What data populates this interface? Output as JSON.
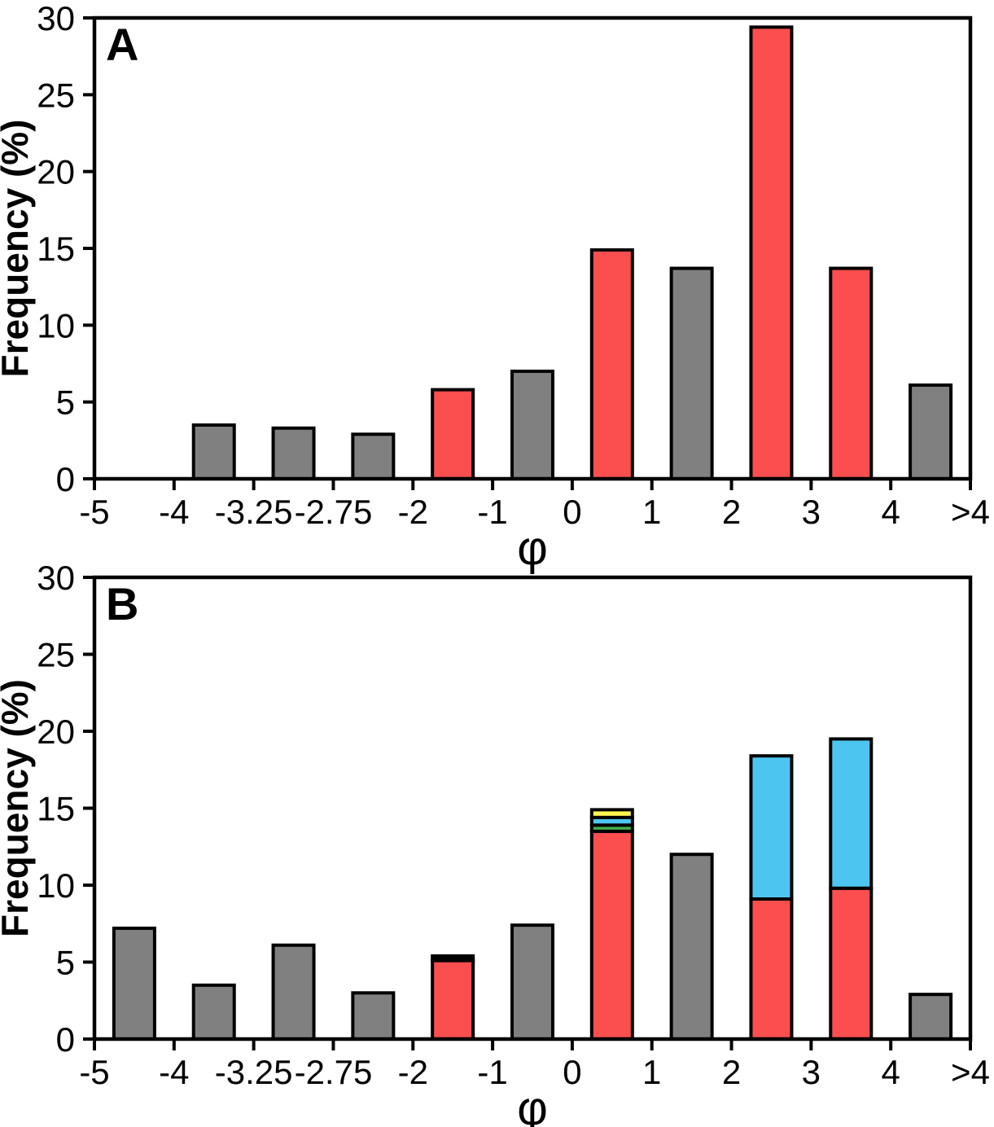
{
  "figure": {
    "background": "#FFFFFF",
    "description": "Two stacked-bar frequency histograms of grain size (phi scale), panels A and B",
    "colors": {
      "gray": "#808080",
      "red": "#FB4F4F",
      "cyan": "#4CC6F0",
      "green": "#44B04A",
      "yellow": "#FFF551",
      "black": "#000000",
      "outline": "#000000",
      "axis": "#000000"
    }
  },
  "chart_data": [
    {
      "type": "bar",
      "panel_label": "A",
      "title": "",
      "xlabel": "φ",
      "ylabel": "Frequency (%)",
      "ylim": [
        0,
        30
      ],
      "yticks": [
        0,
        5,
        10,
        15,
        20,
        25,
        30
      ],
      "xtick_labels": [
        "-5",
        "-4",
        "-3.25",
        "-2.75",
        "-2",
        "-1",
        "0",
        "1",
        "2",
        "3",
        "4",
        ">4"
      ],
      "grid": false,
      "legend": "none",
      "bins": [
        {
          "range": "-5 to -4",
          "segments": []
        },
        {
          "range": "-4 to -3.25",
          "segments": [
            {
              "color": "gray",
              "value": 3.5
            }
          ]
        },
        {
          "range": "-3.25 to -2.75",
          "segments": [
            {
              "color": "gray",
              "value": 3.3
            }
          ]
        },
        {
          "range": "-2.75 to -2",
          "segments": [
            {
              "color": "gray",
              "value": 2.9
            }
          ]
        },
        {
          "range": "-2 to -1",
          "segments": [
            {
              "color": "red",
              "value": 5.8
            }
          ]
        },
        {
          "range": "-1 to 0",
          "segments": [
            {
              "color": "gray",
              "value": 7.0
            }
          ]
        },
        {
          "range": "0 to 1",
          "segments": [
            {
              "color": "red",
              "value": 14.9
            }
          ]
        },
        {
          "range": "1 to 2",
          "segments": [
            {
              "color": "gray",
              "value": 13.7
            }
          ]
        },
        {
          "range": "2 to 3",
          "segments": [
            {
              "color": "red",
              "value": 29.4
            }
          ]
        },
        {
          "range": "3 to 4",
          "segments": [
            {
              "color": "red",
              "value": 13.7
            }
          ]
        },
        {
          "range": "4 to >4",
          "segments": [
            {
              "color": "gray",
              "value": 6.1
            }
          ]
        }
      ]
    },
    {
      "type": "bar",
      "panel_label": "B",
      "title": "",
      "xlabel": "φ",
      "ylabel": "Frequency (%)",
      "ylim": [
        0,
        30
      ],
      "yticks": [
        0,
        5,
        10,
        15,
        20,
        25,
        30
      ],
      "xtick_labels": [
        "-5",
        "-4",
        "-3.25",
        "-2.75",
        "-2",
        "-1",
        "0",
        "1",
        "2",
        "3",
        "4",
        ">4"
      ],
      "grid": false,
      "legend": "none",
      "bins": [
        {
          "range": "-5 to -4",
          "segments": [
            {
              "color": "gray",
              "value": 7.2
            }
          ]
        },
        {
          "range": "-4 to -3.25",
          "segments": [
            {
              "color": "gray",
              "value": 3.5
            }
          ]
        },
        {
          "range": "-3.25 to -2.75",
          "segments": [
            {
              "color": "gray",
              "value": 6.1
            }
          ]
        },
        {
          "range": "-2.75 to -2",
          "segments": [
            {
              "color": "gray",
              "value": 3.0
            }
          ]
        },
        {
          "range": "-2 to -1",
          "segments": [
            {
              "color": "red",
              "value": 5.1
            },
            {
              "color": "black",
              "value": 0.3
            }
          ]
        },
        {
          "range": "-1 to 0",
          "segments": [
            {
              "color": "gray",
              "value": 7.4
            }
          ]
        },
        {
          "range": "0 to 1",
          "segments": [
            {
              "color": "red",
              "value": 13.5
            },
            {
              "color": "green",
              "value": 0.4
            },
            {
              "color": "cyan",
              "value": 0.5
            },
            {
              "color": "yellow",
              "value": 0.5
            }
          ]
        },
        {
          "range": "1 to 2",
          "segments": [
            {
              "color": "gray",
              "value": 12.0
            }
          ]
        },
        {
          "range": "2 to 3",
          "segments": [
            {
              "color": "red",
              "value": 9.1
            },
            {
              "color": "cyan",
              "value": 9.3
            }
          ]
        },
        {
          "range": "3 to 4",
          "segments": [
            {
              "color": "red",
              "value": 9.8
            },
            {
              "color": "cyan",
              "value": 9.7
            }
          ]
        },
        {
          "range": "4 to >4",
          "segments": [
            {
              "color": "gray",
              "value": 2.9
            }
          ]
        }
      ]
    }
  ]
}
